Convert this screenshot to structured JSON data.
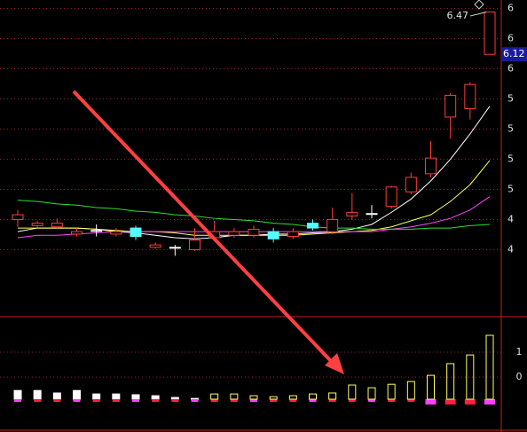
{
  "chart_data": [
    {
      "type": "candlestick",
      "open": [
        4.75,
        4.7,
        4.69,
        4.63,
        4.66,
        4.63,
        4.68,
        4.52,
        4.52,
        4.5,
        4.6,
        4.62,
        4.62,
        4.65,
        4.61,
        4.72,
        4.65,
        4.78,
        4.8,
        4.86,
        4.98,
        5.13,
        5.6,
        5.67,
        6.12
      ],
      "high": [
        4.83,
        4.74,
        4.76,
        4.68,
        4.71,
        4.68,
        4.7,
        4.56,
        4.54,
        4.68,
        4.74,
        4.68,
        4.7,
        4.68,
        4.68,
        4.75,
        4.85,
        4.97,
        4.87,
        5.03,
        5.14,
        5.4,
        5.8,
        5.89,
        6.47
      ],
      "low": [
        4.69,
        4.68,
        4.67,
        4.61,
        4.61,
        4.61,
        4.58,
        4.51,
        4.45,
        4.49,
        4.57,
        4.6,
        4.6,
        4.56,
        4.59,
        4.66,
        4.63,
        4.75,
        4.76,
        4.84,
        4.96,
        5.1,
        5.42,
        5.58,
        6.12
      ],
      "close": [
        4.79,
        4.72,
        4.72,
        4.65,
        4.66,
        4.65,
        4.61,
        4.54,
        4.52,
        4.58,
        4.65,
        4.65,
        4.67,
        4.59,
        4.65,
        4.68,
        4.75,
        4.81,
        4.8,
        5.02,
        5.1,
        5.26,
        5.78,
        5.87,
        6.47
      ],
      "up_color": "#ff3b3b",
      "down_color": "#54ffff",
      "flat_color": "#ffffff",
      "ylim": [
        3.96,
        6.57
      ],
      "yticks": [
        {
          "value": 6.5,
          "label": "6"
        },
        {
          "value": 6.25,
          "label": "6"
        },
        {
          "value": 6.0,
          "label": "6"
        },
        {
          "value": 5.75,
          "label": "5"
        },
        {
          "value": 5.5,
          "label": "5"
        },
        {
          "value": 5.25,
          "label": "5"
        },
        {
          "value": 5.0,
          "label": "5"
        },
        {
          "value": 4.75,
          "label": "4"
        },
        {
          "value": 4.5,
          "label": "4"
        }
      ],
      "grid": true,
      "lines": [
        {
          "color": "#ffffff",
          "values": [
            4.65,
            4.68,
            4.68,
            4.68,
            4.67,
            4.65,
            4.64,
            4.62,
            4.6,
            4.59,
            4.6,
            4.62,
            4.62,
            4.63,
            4.63,
            4.64,
            4.65,
            4.67,
            4.71,
            4.81,
            4.92,
            5.07,
            5.25,
            5.46,
            5.69
          ]
        },
        {
          "color": "#ffff55",
          "values": [
            4.68,
            4.68,
            4.68,
            4.68,
            4.67,
            4.66,
            4.65,
            4.65,
            4.64,
            4.62,
            4.62,
            4.62,
            4.62,
            4.62,
            4.62,
            4.63,
            4.64,
            4.65,
            4.66,
            4.69,
            4.74,
            4.79,
            4.9,
            5.04,
            5.24
          ]
        },
        {
          "color": "#ff44ff",
          "values": [
            4.6,
            4.62,
            4.62,
            4.63,
            4.64,
            4.65,
            4.65,
            4.65,
            4.65,
            4.65,
            4.65,
            4.65,
            4.65,
            4.65,
            4.65,
            4.65,
            4.65,
            4.65,
            4.65,
            4.67,
            4.69,
            4.72,
            4.76,
            4.83,
            4.94
          ]
        },
        {
          "color": "#33dd33",
          "values": [
            4.91,
            4.9,
            4.88,
            4.87,
            4.85,
            4.84,
            4.82,
            4.81,
            4.79,
            4.78,
            4.76,
            4.75,
            4.74,
            4.72,
            4.71,
            4.69,
            4.68,
            4.68,
            4.67,
            4.67,
            4.67,
            4.68,
            4.68,
            4.7,
            4.71
          ]
        }
      ],
      "annotations": [
        {
          "text": "6.47",
          "value": 6.47
        },
        {
          "text": "6.12",
          "value": 6.12
        }
      ]
    },
    {
      "type": "bar",
      "ylim": [
        -0.89,
        2.43
      ],
      "yticks": [
        1,
        0
      ],
      "series": [
        {
          "color": "#ffffff",
          "values": [
            -0.54,
            -0.54,
            -0.64,
            -0.54,
            -0.68,
            -0.68,
            -0.71,
            -0.75,
            -0.82,
            -0.86,
            null,
            null,
            null,
            null,
            null,
            null,
            null,
            null,
            null,
            null,
            null,
            null,
            null,
            null,
            null
          ]
        },
        {
          "color": "#ffff66",
          "values": [
            null,
            null,
            null,
            null,
            null,
            null,
            null,
            null,
            null,
            null,
            -0.68,
            -0.68,
            -0.75,
            -0.79,
            -0.75,
            -0.68,
            -0.64,
            -0.32,
            -0.43,
            -0.29,
            -0.18,
            0.07,
            0.54,
            0.89,
            1.68
          ]
        }
      ]
    }
  ]
}
